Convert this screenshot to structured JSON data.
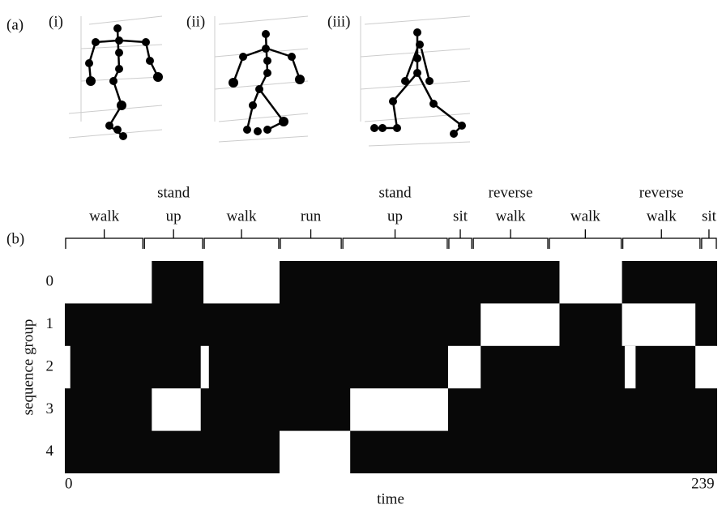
{
  "panel_labels": [
    "(a)",
    "(b)"
  ],
  "figure_labels": [
    "(i)",
    "(ii)",
    "(iii)"
  ],
  "chart_data": {
    "type": "heatmap",
    "xlabel": "time",
    "ylabel": "sequence group",
    "xlim": [
      0,
      240
    ],
    "xticks": [
      0,
      239
    ],
    "rows": [
      "0",
      "1",
      "2",
      "3",
      "4"
    ],
    "blocks": [
      [
        [
          0,
          32
        ],
        [
          51,
          79
        ],
        [
          182,
          205
        ]
      ],
      [
        [
          153,
          182
        ],
        [
          205,
          232
        ]
      ],
      [
        [
          0,
          2
        ],
        [
          50,
          53
        ],
        [
          141,
          153
        ],
        [
          206,
          210
        ],
        [
          232,
          240
        ]
      ],
      [
        [
          32,
          50
        ],
        [
          105,
          141
        ]
      ],
      [
        [
          79,
          105
        ]
      ]
    ],
    "segments": [
      {
        "label": [
          "walk"
        ],
        "start": 0,
        "end": 29
      },
      {
        "label": [
          "stand",
          "up"
        ],
        "start": 29,
        "end": 51
      },
      {
        "label": [
          "walk"
        ],
        "start": 51,
        "end": 79
      },
      {
        "label": [
          "run"
        ],
        "start": 79,
        "end": 102
      },
      {
        "label": [
          "stand",
          "up"
        ],
        "start": 102,
        "end": 141
      },
      {
        "label": [
          "sit"
        ],
        "start": 141,
        "end": 150
      },
      {
        "label": [
          "reverse",
          "walk"
        ],
        "start": 150,
        "end": 178
      },
      {
        "label": [
          "walk"
        ],
        "start": 178,
        "end": 205
      },
      {
        "label": [
          "reverse",
          "walk"
        ],
        "start": 205,
        "end": 234
      },
      {
        "label": [
          "sit"
        ],
        "start": 234,
        "end": 240
      }
    ]
  }
}
